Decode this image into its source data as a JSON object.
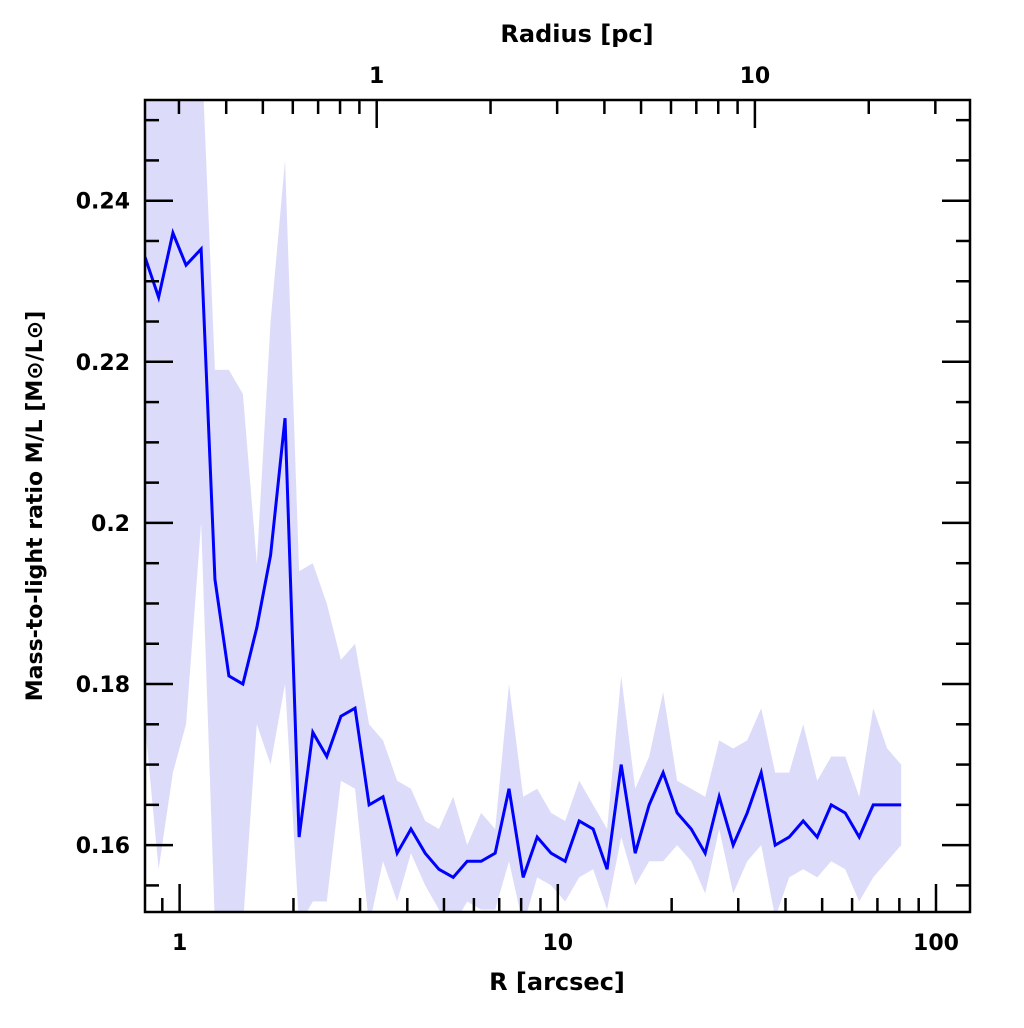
{
  "chart_data": {
    "type": "line",
    "title": "",
    "xlabel": "R [arcsec]",
    "ylabel": "Mass-to-light ratio M/L [M⊙/L⊙]",
    "x_scale": "log",
    "xlim": [
      0.81,
      123
    ],
    "ylim": [
      0.1517,
      0.2525
    ],
    "x_ticks": [
      1,
      10,
      100
    ],
    "x_tick_labels": [
      "1",
      "10",
      "100"
    ],
    "y_ticks": [
      0.16,
      0.18,
      0.2,
      0.22,
      0.24
    ],
    "y_tick_labels": [
      "0.16",
      "0.18",
      "0.2",
      "0.22",
      "0.24"
    ],
    "top_axis": {
      "label": "Radius [pc]",
      "scale": "log",
      "ticks": [
        1,
        10
      ],
      "tick_labels": [
        "1",
        "10"
      ],
      "arcsec_per_pc": 3.32
    },
    "grid": false,
    "legend": "none",
    "colors": {
      "line": "#0000ff",
      "band": "#dcdcfa",
      "axis": "#000000"
    },
    "x": [
      0.81,
      0.88,
      0.96,
      1.04,
      1.14,
      1.24,
      1.35,
      1.47,
      1.6,
      1.74,
      1.9,
      2.07,
      2.25,
      2.45,
      2.67,
      2.91,
      3.17,
      3.45,
      3.76,
      4.09,
      4.46,
      4.85,
      5.29,
      5.76,
      6.27,
      6.83,
      7.43,
      8.1,
      8.82,
      9.6,
      10.46,
      11.39,
      12.4,
      13.5,
      14.71,
      16.02,
      17.44,
      18.99,
      20.68,
      22.53,
      24.53,
      26.71,
      29.09,
      31.68,
      34.5,
      37.57,
      40.91,
      44.55,
      48.52,
      52.84,
      57.54,
      62.66,
      68.24,
      74.3,
      80.9
    ],
    "series": [
      {
        "values": [
          0.233,
          0.228,
          0.236,
          0.232,
          0.234,
          0.193,
          0.181,
          0.18,
          0.187,
          0.196,
          0.213,
          0.161,
          0.174,
          0.171,
          0.176,
          0.177,
          0.165,
          0.166,
          0.159,
          0.162,
          0.159,
          0.157,
          0.156,
          0.158,
          0.158,
          0.159,
          0.167,
          0.156,
          0.161,
          0.159,
          0.158,
          0.163,
          0.162,
          0.157,
          0.17,
          0.159,
          0.165,
          0.169,
          0.164,
          0.162,
          0.159,
          0.166,
          0.16,
          0.164,
          0.169,
          0.16,
          0.161,
          0.163,
          0.161,
          0.165,
          0.164,
          0.161,
          0.165,
          0.165,
          0.165
        ],
        "upper": [
          0.26,
          0.26,
          0.26,
          0.26,
          0.26,
          0.219,
          0.219,
          0.216,
          0.195,
          0.225,
          0.245,
          0.194,
          0.195,
          0.19,
          0.183,
          0.185,
          0.175,
          0.173,
          0.168,
          0.167,
          0.163,
          0.162,
          0.166,
          0.16,
          0.164,
          0.162,
          0.18,
          0.166,
          0.167,
          0.164,
          0.163,
          0.168,
          0.165,
          0.162,
          0.181,
          0.167,
          0.171,
          0.179,
          0.168,
          0.167,
          0.166,
          0.173,
          0.172,
          0.173,
          0.177,
          0.169,
          0.169,
          0.175,
          0.168,
          0.171,
          0.171,
          0.166,
          0.177,
          0.172,
          0.17
        ],
        "lower": [
          0.175,
          0.157,
          0.169,
          0.175,
          0.2,
          0.15,
          0.15,
          0.15,
          0.175,
          0.17,
          0.18,
          0.15,
          0.153,
          0.153,
          0.168,
          0.167,
          0.15,
          0.158,
          0.153,
          0.159,
          0.155,
          0.152,
          0.15,
          0.153,
          0.152,
          0.152,
          0.158,
          0.15,
          0.156,
          0.155,
          0.153,
          0.156,
          0.157,
          0.152,
          0.161,
          0.155,
          0.158,
          0.158,
          0.16,
          0.158,
          0.154,
          0.162,
          0.154,
          0.158,
          0.16,
          0.151,
          0.156,
          0.157,
          0.156,
          0.158,
          0.157,
          0.153,
          0.156,
          0.158,
          0.16
        ]
      }
    ]
  }
}
